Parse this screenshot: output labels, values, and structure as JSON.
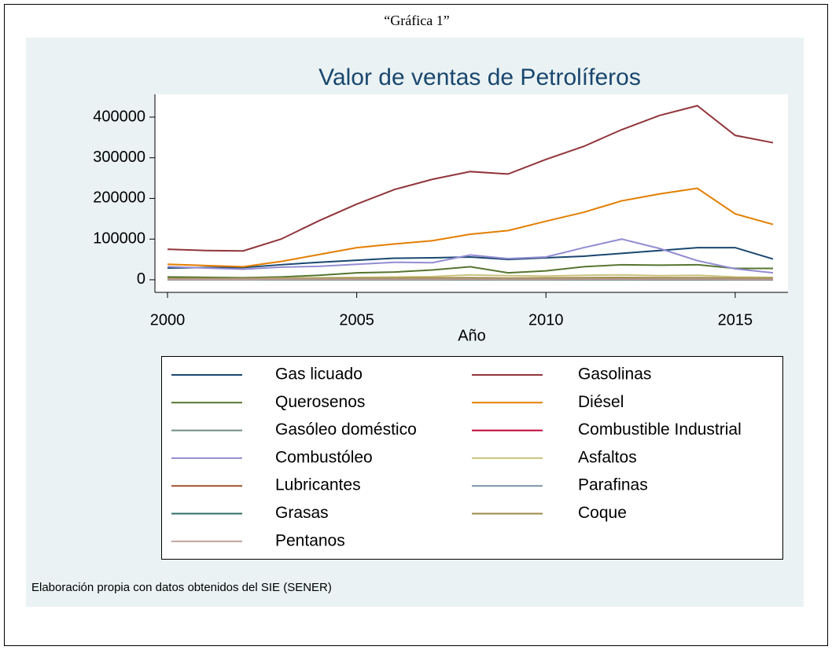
{
  "chart_data": {
    "type": "line",
    "caption": "“Gráfica 1”",
    "title": "Valor de ventas de Petrolíferos",
    "xlabel": "Año",
    "note": "Elaboración propia con datos obtenidos del SIE (SENER)",
    "x": [
      2000,
      2001,
      2002,
      2003,
      2004,
      2005,
      2006,
      2007,
      2008,
      2009,
      2010,
      2011,
      2012,
      2013,
      2014,
      2015,
      2016
    ],
    "xlim": [
      2000,
      2016
    ],
    "xticks": [
      2000,
      2005,
      2010,
      2015
    ],
    "ylim": [
      -31000,
      456000
    ],
    "yticks": [
      0,
      100000,
      200000,
      300000,
      400000
    ],
    "series": [
      {
        "name": "Gas licuado",
        "color": "#1a476f",
        "values": [
          29000,
          30000,
          30000,
          37000,
          43000,
          48000,
          53000,
          54000,
          56000,
          50000,
          54000,
          58000,
          65000,
          72000,
          79000,
          79000,
          51000
        ]
      },
      {
        "name": "Gasolinas",
        "color": "#90353b",
        "values": [
          75000,
          72000,
          71000,
          100000,
          145000,
          186000,
          222000,
          247000,
          266000,
          260000,
          296000,
          328000,
          369000,
          404000,
          428000,
          355000,
          337000
        ]
      },
      {
        "name": "Querosenos",
        "color": "#55752f",
        "values": [
          7000,
          6000,
          5000,
          7000,
          11000,
          17000,
          19000,
          24000,
          32000,
          17000,
          22000,
          32000,
          37000,
          36000,
          37000,
          28000,
          28000
        ]
      },
      {
        "name": "Diésel",
        "color": "#e37e00",
        "values": [
          38000,
          35000,
          32000,
          45000,
          62000,
          79000,
          88000,
          96000,
          112000,
          121000,
          144000,
          166000,
          194000,
          211000,
          225000,
          162000,
          136000
        ]
      },
      {
        "name": "Gasóleo doméstico",
        "color": "#6e8e84",
        "values": [
          500,
          400,
          300,
          300,
          200,
          200,
          200,
          200,
          100,
          100,
          100,
          100,
          100,
          100,
          100,
          100,
          100
        ]
      },
      {
        "name": "Combustible Industrial",
        "color": "#c10534",
        "values": [
          1500,
          1400,
          1300,
          1200,
          1200,
          1100,
          1000,
          1000,
          1000,
          900,
          900,
          800,
          800,
          700,
          700,
          600,
          500
        ]
      },
      {
        "name": "Combustóleo",
        "color": "#938dd2",
        "values": [
          32000,
          29000,
          26000,
          31000,
          33000,
          38000,
          43000,
          42000,
          61000,
          52000,
          56000,
          79000,
          100000,
          77000,
          47000,
          27000,
          17000
        ]
      },
      {
        "name": "Asfaltos",
        "color": "#cac27e",
        "values": [
          3000,
          3000,
          3000,
          4000,
          5000,
          6000,
          7000,
          8000,
          12000,
          10000,
          9000,
          11000,
          12000,
          10000,
          11000,
          7000,
          6000
        ]
      },
      {
        "name": "Lubricantes",
        "color": "#a0522d",
        "values": [
          2500,
          2400,
          2300,
          2500,
          2800,
          3000,
          3200,
          3400,
          3500,
          3200,
          3500,
          3700,
          3800,
          3800,
          3900,
          3500,
          3300
        ]
      },
      {
        "name": "Parafinas",
        "color": "#7b92a8",
        "values": [
          500,
          500,
          500,
          500,
          600,
          600,
          600,
          600,
          700,
          600,
          600,
          700,
          700,
          700,
          700,
          600,
          600
        ]
      },
      {
        "name": "Grasas",
        "color": "#2d6d66",
        "values": [
          300,
          300,
          300,
          300,
          300,
          300,
          300,
          300,
          300,
          300,
          300,
          300,
          300,
          300,
          300,
          300,
          300
        ]
      },
      {
        "name": "Coque",
        "color": "#9c8847",
        "values": [
          2000,
          2000,
          2100,
          2500,
          3000,
          3500,
          4000,
          4500,
          5000,
          4000,
          4500,
          5000,
          5500,
          5000,
          5000,
          4000,
          3500
        ]
      },
      {
        "name": "Pentanos",
        "color": "#bfa19c",
        "values": [
          1000,
          1000,
          1000,
          1100,
          1100,
          1200,
          1200,
          1200,
          1300,
          1200,
          1200,
          1300,
          1300,
          1300,
          1300,
          1200,
          1100
        ]
      }
    ]
  }
}
